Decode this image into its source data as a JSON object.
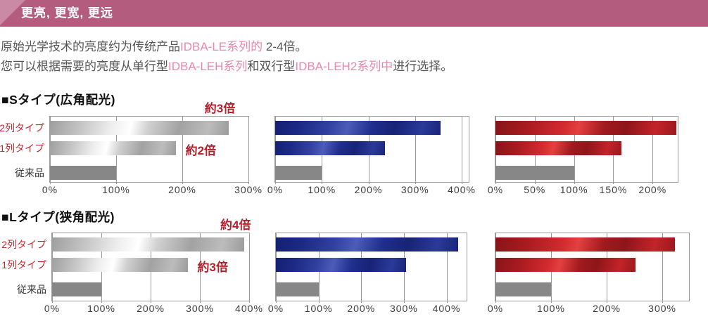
{
  "header": {
    "banner_text": "更亮, 更宽, 更远"
  },
  "intro": {
    "line1_segments": [
      {
        "text": "原始光学技术的亮度约为传统产品",
        "color": "dark"
      },
      {
        "text": "IDBA-LE系列的",
        "color": "pink"
      },
      {
        "text": " 2-4倍。",
        "color": "dark"
      }
    ],
    "line2_segments": [
      {
        "text": "您可以根据需要的亮度从单行型",
        "color": "dark"
      },
      {
        "text": "IDBA-LEH系列",
        "color": "pink"
      },
      {
        "text": "和双行型",
        "color": "dark"
      },
      {
        "text": "IDBA-LEH2系列中",
        "color": "pink"
      },
      {
        "text": "进行选择。",
        "color": "dark"
      }
    ]
  },
  "sections": [
    {
      "title": "■Sタイプ(広角配光)"
    },
    {
      "title": "■Lタイプ(狭角配光)"
    }
  ],
  "colors": {
    "banner_background": "#b45c7d",
    "banner_corner_accent": "#ca89a4",
    "pink_text": "#ed86ad",
    "red_annotation": "#b4202b",
    "red_category_label": "#c22a30",
    "blue_bar": "#1d2a85",
    "red_bar": "#a81b20",
    "silver_bar": "#c0c0c0",
    "gray_baseline_bar": "#878787",
    "gridline": "#9b9b9b"
  },
  "chart_data": [
    {
      "type": "bar",
      "orientation": "horizontal",
      "section": "Sタイプ(広角配光)",
      "palette": "silver",
      "categories": [
        "2列タイプ",
        "1列タイプ",
        "従来品"
      ],
      "category_colors": [
        "red",
        "red",
        "dark"
      ],
      "show_category_labels": true,
      "values": [
        270,
        190,
        100
      ],
      "unit": "%",
      "xlim": [
        0,
        300
      ],
      "ticks": [
        0,
        100,
        200,
        300
      ],
      "tick_labels": [
        "0%",
        "100%",
        "200%",
        "300%"
      ],
      "annotations": [
        {
          "bar": 0,
          "text": "約3倍",
          "placement": "above"
        },
        {
          "bar": 1,
          "text": "約2倍",
          "placement": "right"
        }
      ]
    },
    {
      "type": "bar",
      "orientation": "horizontal",
      "section": "Sタイプ(広角配光)",
      "palette": "blue",
      "categories": [
        "2列タイプ",
        "1列タイプ",
        "従来品"
      ],
      "category_colors": [
        "red",
        "red",
        "dark"
      ],
      "show_category_labels": false,
      "values": [
        355,
        235,
        100
      ],
      "unit": "%",
      "xlim": [
        0,
        415
      ],
      "ticks": [
        0,
        100,
        200,
        300,
        400
      ],
      "tick_labels": [
        "0%",
        "100%",
        "200%",
        "300%",
        "400%"
      ],
      "annotations": []
    },
    {
      "type": "bar",
      "orientation": "horizontal",
      "section": "Sタイプ(広角配光)",
      "palette": "red",
      "categories": [
        "2列タイプ",
        "1列タイプ",
        "従来品"
      ],
      "category_colors": [
        "red",
        "red",
        "dark"
      ],
      "show_category_labels": false,
      "values": [
        230,
        160,
        100
      ],
      "unit": "%",
      "xlim": [
        0,
        232
      ],
      "ticks": [
        0,
        50,
        100,
        150,
        200
      ],
      "tick_labels": [
        "0%",
        "50%",
        "100%",
        "150%",
        "200%"
      ],
      "annotations": []
    },
    {
      "type": "bar",
      "orientation": "horizontal",
      "section": "Lタイプ(狭角配光)",
      "palette": "silver",
      "categories": [
        "2列タイプ",
        "1列タイプ",
        "従来品"
      ],
      "category_colors": [
        "red",
        "red",
        "dark"
      ],
      "show_category_labels": true,
      "values": [
        390,
        275,
        100
      ],
      "unit": "%",
      "xlim": [
        0,
        400
      ],
      "ticks": [
        0,
        100,
        200,
        300,
        400
      ],
      "tick_labels": [
        "0%",
        "100%",
        "200%",
        "300%",
        "400%"
      ],
      "annotations": [
        {
          "bar": 0,
          "text": "約4倍",
          "placement": "above"
        },
        {
          "bar": 1,
          "text": "約3倍",
          "placement": "right"
        }
      ]
    },
    {
      "type": "bar",
      "orientation": "horizontal",
      "section": "Lタイプ(狭角配光)",
      "palette": "blue",
      "categories": [
        "2列タイプ",
        "1列タイプ",
        "従来品"
      ],
      "category_colors": [
        "red",
        "red",
        "dark"
      ],
      "show_category_labels": false,
      "values": [
        428,
        305,
        100
      ],
      "unit": "%",
      "xlim": [
        0,
        447
      ],
      "ticks": [
        0,
        100,
        200,
        300,
        400
      ],
      "tick_labels": [
        "0%",
        "100%",
        "200%",
        "300%",
        "400%"
      ],
      "annotations": []
    },
    {
      "type": "bar",
      "orientation": "horizontal",
      "section": "Lタイプ(狭角配光)",
      "palette": "red",
      "categories": [
        "2列タイプ",
        "1列タイプ",
        "従来品"
      ],
      "category_colors": [
        "red",
        "red",
        "dark"
      ],
      "show_category_labels": false,
      "values": [
        323,
        252,
        100
      ],
      "unit": "%",
      "xlim": [
        0,
        348
      ],
      "ticks": [
        0,
        100,
        200,
        300
      ],
      "tick_labels": [
        "0%",
        "100%",
        "200%",
        "300%"
      ],
      "annotations": []
    }
  ]
}
